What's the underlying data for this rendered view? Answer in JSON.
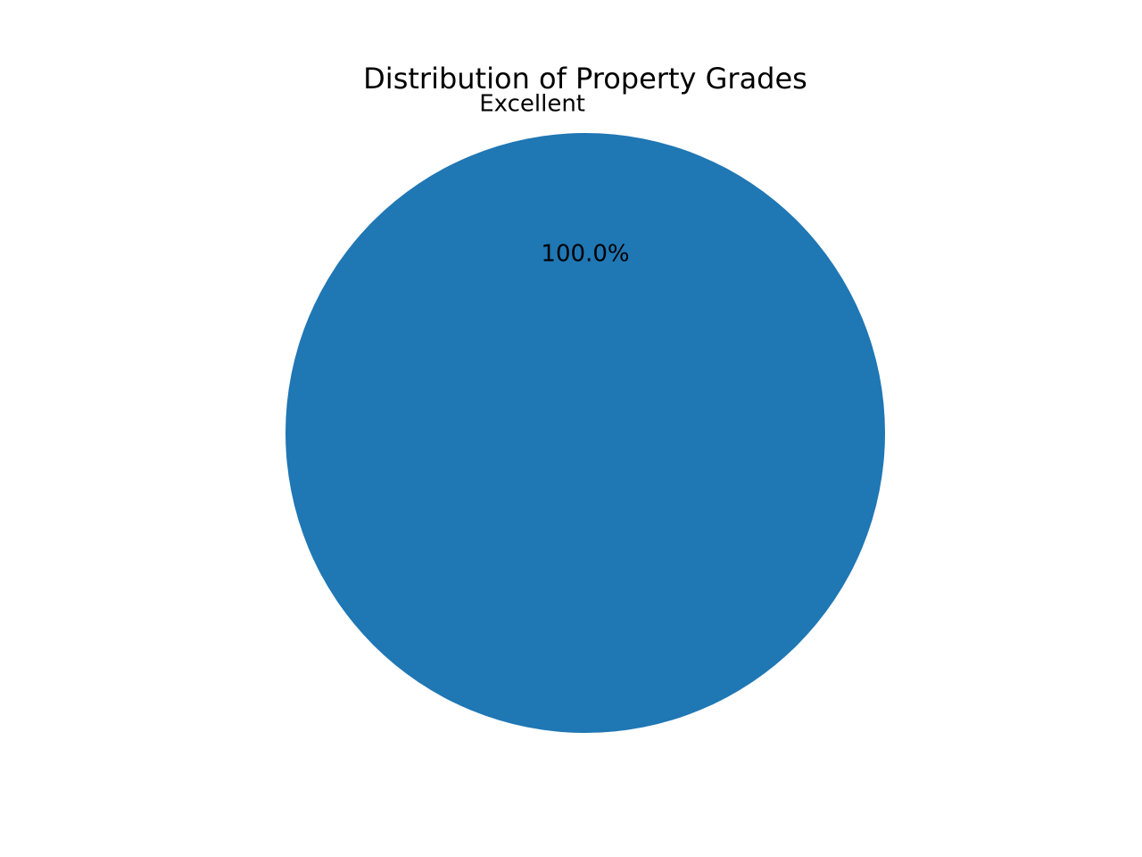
{
  "chart_data": {
    "type": "pie",
    "title": "Distribution of Property Grades",
    "slices": [
      {
        "label": "Excellent",
        "value": 100.0,
        "percent_label": "100.0%",
        "color": "#1f77b4"
      }
    ]
  }
}
